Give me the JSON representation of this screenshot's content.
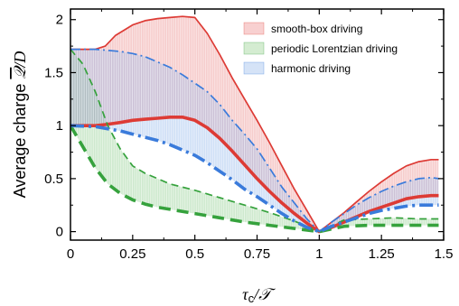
{
  "chart_data": {
    "type": "line",
    "xlabel": "τc/𝒯",
    "ylabel": "Average charge 𝒬̄/D",
    "xlim": [
      0,
      1.5
    ],
    "ylim": [
      -0.08,
      2.1
    ],
    "x_ticks": [
      "0",
      "0.25",
      "0.5",
      "0.75",
      "1",
      "1.25",
      "1.5"
    ],
    "y_ticks": [
      "0",
      "0.5",
      "1",
      "1.5",
      "2"
    ],
    "legend": {
      "placement": "top-right"
    },
    "bands": [
      {
        "name": "smooth-box driving",
        "fill": "#f8d0d0",
        "line_color": "#dd3b35",
        "upper": {
          "x": [
            0,
            0.1,
            0.14,
            0.18,
            0.25,
            0.3,
            0.35,
            0.4,
            0.45,
            0.5,
            0.55,
            0.6,
            0.65,
            0.7,
            0.75,
            0.8,
            0.85,
            0.9,
            0.95,
            1.0,
            1.05,
            1.1,
            1.15,
            1.2,
            1.25,
            1.3,
            1.35,
            1.4,
            1.45,
            1.48
          ],
          "y": [
            1.72,
            1.72,
            1.75,
            1.85,
            1.95,
            1.99,
            2.01,
            2.02,
            2.03,
            2.02,
            1.87,
            1.67,
            1.45,
            1.25,
            1.05,
            0.84,
            0.62,
            0.4,
            0.2,
            0.0,
            0.09,
            0.18,
            0.28,
            0.38,
            0.47,
            0.55,
            0.62,
            0.66,
            0.68,
            0.68
          ]
        },
        "lower": {
          "x": [
            0,
            0.1,
            0.14,
            0.2,
            0.25,
            0.3,
            0.35,
            0.4,
            0.45,
            0.5,
            0.55,
            0.6,
            0.65,
            0.7,
            0.75,
            0.8,
            0.85,
            0.9,
            0.95,
            1.0,
            1.05,
            1.1,
            1.15,
            1.2,
            1.25,
            1.3,
            1.35,
            1.4,
            1.45,
            1.48
          ],
          "y": [
            1.0,
            1.0,
            1.01,
            1.03,
            1.05,
            1.06,
            1.07,
            1.08,
            1.08,
            1.05,
            0.98,
            0.88,
            0.76,
            0.63,
            0.5,
            0.38,
            0.27,
            0.17,
            0.08,
            0.0,
            0.04,
            0.09,
            0.14,
            0.19,
            0.23,
            0.27,
            0.31,
            0.33,
            0.34,
            0.34
          ]
        }
      },
      {
        "name": "periodic Lorentzian driving",
        "fill": "#d4ecd1",
        "line_color": "#36a23d",
        "upper": {
          "x": [
            0,
            0.05,
            0.1,
            0.15,
            0.2,
            0.25,
            0.3,
            0.35,
            0.4,
            0.5,
            0.6,
            0.7,
            0.8,
            0.9,
            1.0,
            1.1,
            1.2,
            1.3,
            1.4,
            1.48
          ],
          "y": [
            1.72,
            1.58,
            1.32,
            1.0,
            0.78,
            0.62,
            0.55,
            0.5,
            0.45,
            0.39,
            0.32,
            0.25,
            0.18,
            0.1,
            0.0,
            0.11,
            0.12,
            0.13,
            0.12,
            0.12
          ]
        },
        "lower": {
          "x": [
            0,
            0.05,
            0.1,
            0.15,
            0.2,
            0.25,
            0.3,
            0.35,
            0.4,
            0.5,
            0.6,
            0.7,
            0.8,
            0.9,
            1.0,
            1.1,
            1.2,
            1.3,
            1.4,
            1.48
          ],
          "y": [
            1.0,
            0.8,
            0.6,
            0.45,
            0.36,
            0.3,
            0.26,
            0.23,
            0.21,
            0.17,
            0.13,
            0.09,
            0.06,
            0.03,
            0.0,
            0.05,
            0.06,
            0.06,
            0.06,
            0.06
          ]
        }
      },
      {
        "name": "harmonic driving",
        "fill": "#d5e3f7",
        "line_color": "#3a7bdb",
        "upper": {
          "x": [
            0,
            0.1,
            0.15,
            0.2,
            0.25,
            0.3,
            0.35,
            0.4,
            0.45,
            0.5,
            0.55,
            0.6,
            0.65,
            0.7,
            0.75,
            0.8,
            0.85,
            0.9,
            0.95,
            1.0,
            1.05,
            1.1,
            1.15,
            1.2,
            1.25,
            1.3,
            1.35,
            1.4,
            1.45,
            1.48
          ],
          "y": [
            1.72,
            1.72,
            1.71,
            1.7,
            1.68,
            1.65,
            1.6,
            1.55,
            1.48,
            1.4,
            1.32,
            1.2,
            1.05,
            0.92,
            0.78,
            0.6,
            0.42,
            0.27,
            0.12,
            0.0,
            0.09,
            0.17,
            0.25,
            0.32,
            0.38,
            0.43,
            0.47,
            0.5,
            0.51,
            0.5
          ]
        },
        "lower": {
          "x": [
            0,
            0.1,
            0.15,
            0.2,
            0.25,
            0.3,
            0.35,
            0.4,
            0.45,
            0.5,
            0.55,
            0.6,
            0.65,
            0.7,
            0.75,
            0.8,
            0.85,
            0.9,
            0.95,
            1.0,
            1.05,
            1.1,
            1.15,
            1.2,
            1.25,
            1.3,
            1.35,
            1.4,
            1.45,
            1.48
          ],
          "y": [
            1.0,
            0.99,
            0.97,
            0.95,
            0.92,
            0.89,
            0.86,
            0.82,
            0.77,
            0.72,
            0.65,
            0.57,
            0.49,
            0.4,
            0.33,
            0.25,
            0.17,
            0.1,
            0.04,
            0.0,
            0.05,
            0.09,
            0.13,
            0.17,
            0.2,
            0.22,
            0.24,
            0.25,
            0.25,
            0.25
          ]
        }
      }
    ]
  }
}
